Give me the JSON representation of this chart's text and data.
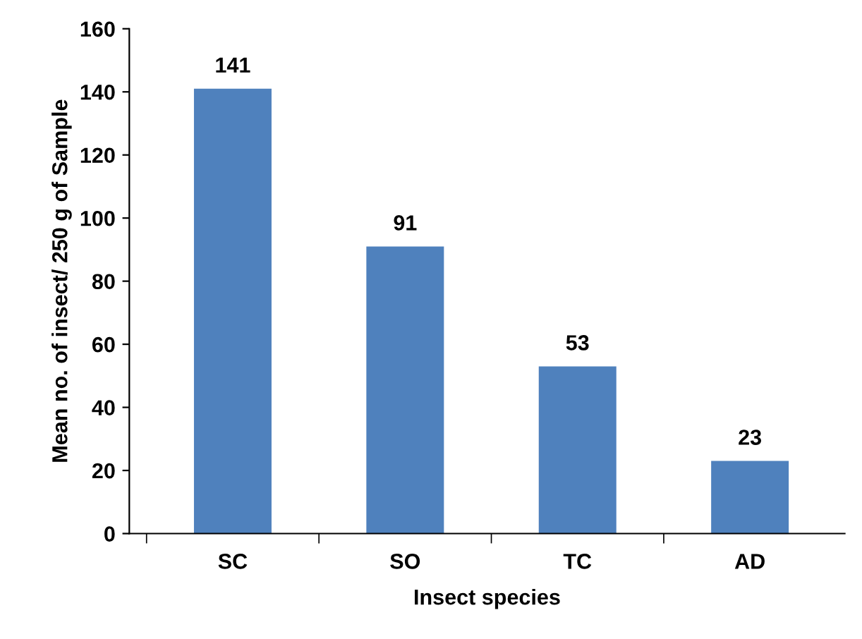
{
  "chart_data": {
    "type": "bar",
    "xlabel": "Insect species",
    "ylabel": "Mean no. of insect/ 250 g of Sample",
    "categories": [
      "SC",
      "SO",
      "TC",
      "AD"
    ],
    "values": [
      141,
      91,
      53,
      23
    ],
    "color": "#4f81bd",
    "ylim": [
      0,
      160
    ],
    "yticks": [
      0,
      20,
      40,
      60,
      80,
      100,
      120,
      140,
      160
    ],
    "data_labels": true,
    "grid": false,
    "legend": false
  }
}
